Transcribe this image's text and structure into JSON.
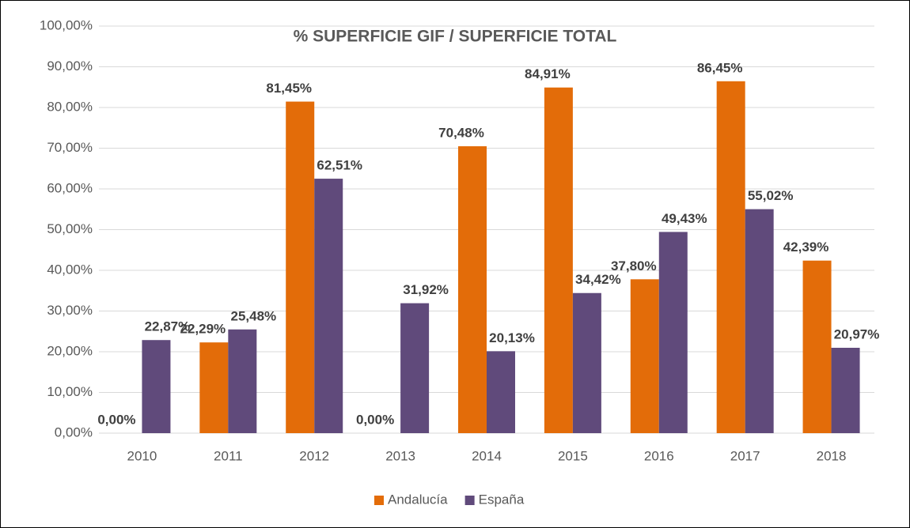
{
  "chart_data": {
    "type": "bar",
    "title": "% SUPERFICIE GIF / SUPERFICIE TOTAL",
    "categories": [
      "2010",
      "2011",
      "2012",
      "2013",
      "2014",
      "2015",
      "2016",
      "2017",
      "2018"
    ],
    "series": [
      {
        "name": "Andalucía",
        "color": "#e36c09",
        "values": [
          0,
          22.29,
          81.45,
          0,
          70.48,
          84.91,
          37.8,
          86.45,
          42.39
        ],
        "value_labels": [
          "0,00%",
          "22,29%",
          "81,45%",
          "0,00%",
          "70,48%",
          "84,91%",
          "37,80%",
          "86,45%",
          "42,39%"
        ]
      },
      {
        "name": "España",
        "color": "#604a7b",
        "values": [
          22.87,
          25.48,
          62.51,
          31.92,
          20.13,
          34.42,
          49.43,
          55.02,
          20.97
        ],
        "value_labels": [
          "22,87%",
          "25,48%",
          "62,51%",
          "31,92%",
          "20,13%",
          "34,42%",
          "49,43%",
          "55,02%",
          "20,97%"
        ]
      }
    ],
    "ylim": [
      0,
      100
    ],
    "yticks": [
      {
        "value": 0,
        "label": "0,00%"
      },
      {
        "value": 10,
        "label": "10,00%"
      },
      {
        "value": 20,
        "label": "20,00%"
      },
      {
        "value": 30,
        "label": "30,00%"
      },
      {
        "value": 40,
        "label": "40,00%"
      },
      {
        "value": 50,
        "label": "50,00%"
      },
      {
        "value": 60,
        "label": "60,00%"
      },
      {
        "value": 70,
        "label": "70,00%"
      },
      {
        "value": 80,
        "label": "80,00%"
      },
      {
        "value": 90,
        "label": "90,00%"
      },
      {
        "value": 100,
        "label": "100,00%"
      }
    ],
    "grid": true,
    "legend": "bottom"
  }
}
